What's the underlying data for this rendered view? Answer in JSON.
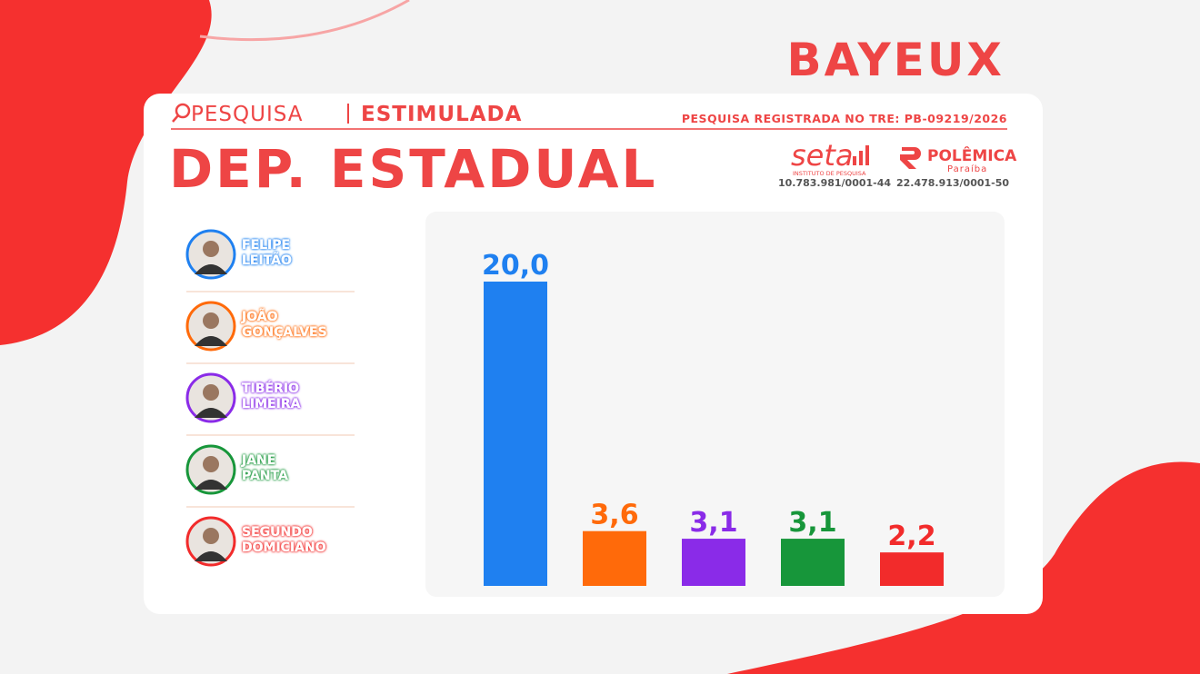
{
  "header": {
    "city": "BAYEUX",
    "survey_label": "PESQUISA",
    "survey_type": "ESTIMULADA",
    "registration": "PESQUISA REGISTRADA NO TRE: PB-09219/2026",
    "office": "DEP. ESTADUAL"
  },
  "institute": {
    "name": "seta",
    "subtitle": "INSTITUTO DE PESQUISA",
    "cnpj": "10.783.981/0001-44"
  },
  "publisher": {
    "name": "POLÊMICA",
    "subtitle": "Paraíba",
    "cnpj": "22.478.913/0001-50"
  },
  "chart_data": {
    "type": "bar",
    "categories": [
      "FELIPE LEITÃO",
      "JOÃO GONÇALVES",
      "TIBÉRIO LIMEIRA",
      "JANE PANTA",
      "SEGUNDO DOMICIANO"
    ],
    "values": [
      20.0,
      3.6,
      3.1,
      3.1,
      2.2
    ],
    "value_labels": [
      "20,0",
      "3,6",
      "3,1",
      "3,1",
      "2,2"
    ],
    "colors": [
      "#1f80f0",
      "#ff6a0a",
      "#8a2be8",
      "#17963a",
      "#f22b2b"
    ]
  }
}
